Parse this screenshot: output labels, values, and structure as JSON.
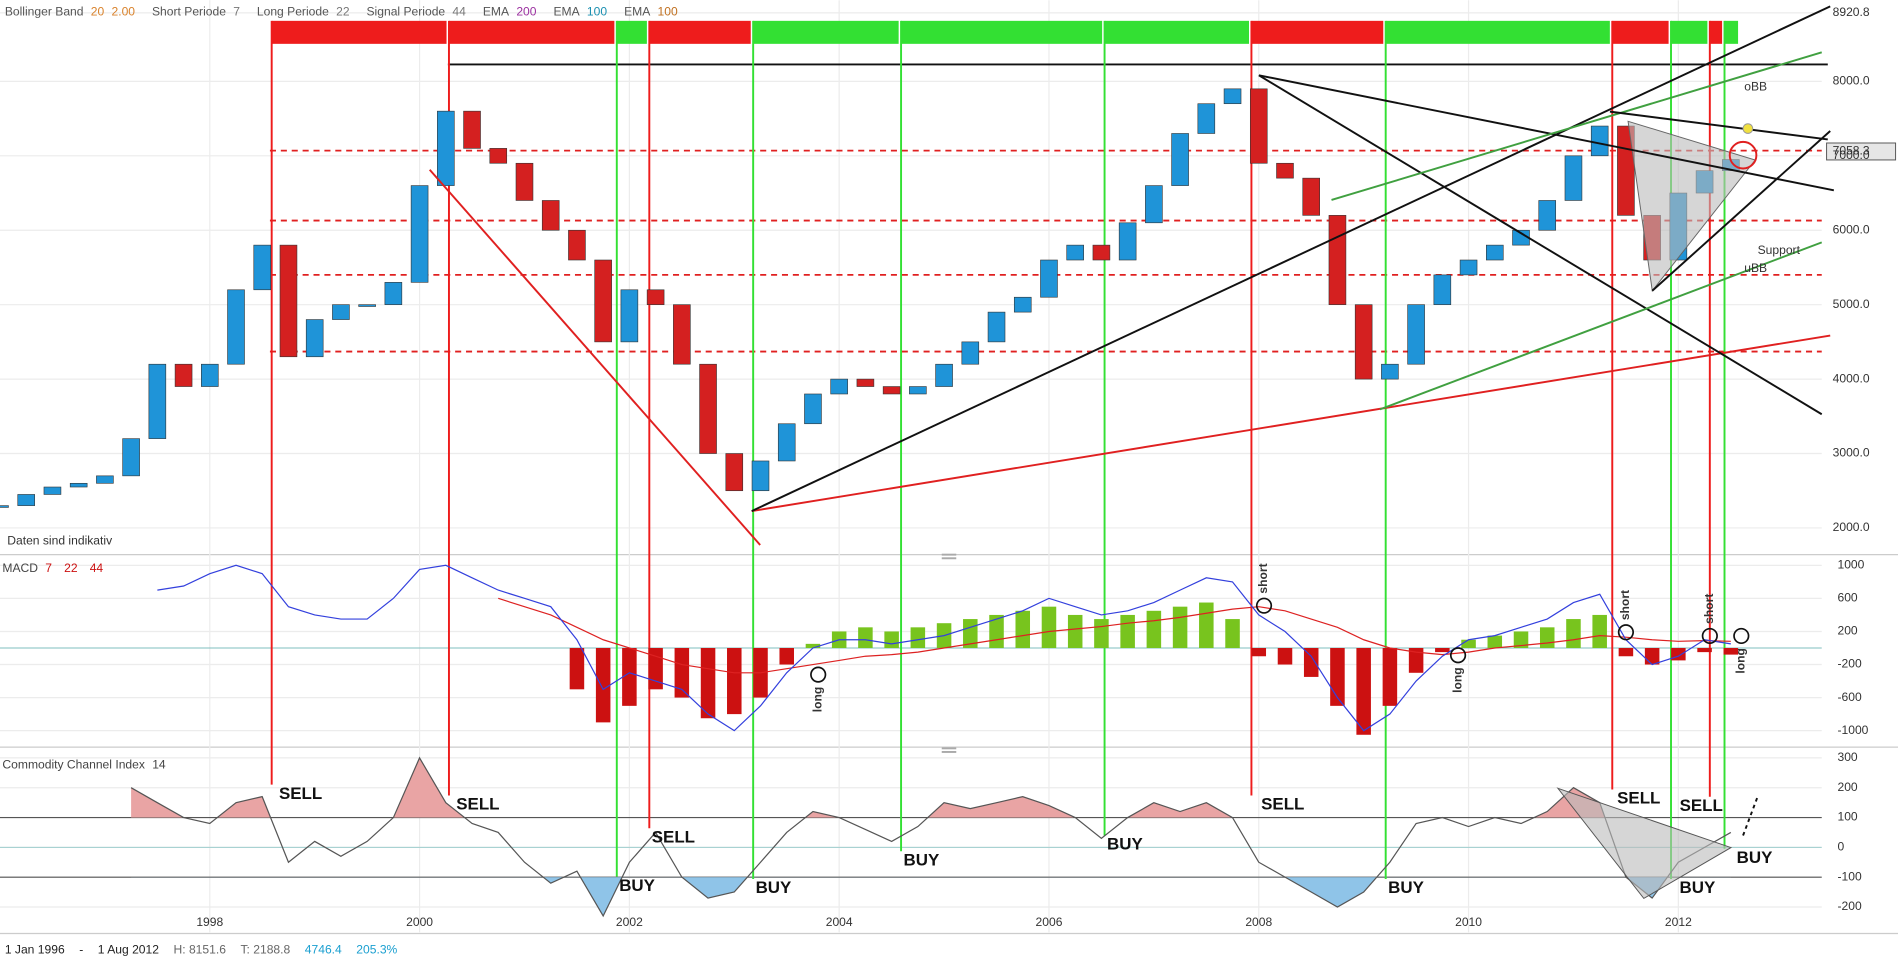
{
  "chart_data": [
    {
      "type": "candlestick",
      "legend": [
        {
          "label": "Bollinger Band",
          "params": [
            "20",
            "2.00"
          ],
          "color": "#d9822b"
        },
        {
          "label": "Short Periode",
          "params": [
            "7"
          ],
          "color": "#777777"
        },
        {
          "label": "Long Periode",
          "params": [
            "22"
          ],
          "color": "#777777"
        },
        {
          "label": "Signal Periode",
          "params": [
            "44"
          ],
          "color": "#777777"
        },
        {
          "label": "EMA",
          "params": [
            "200"
          ],
          "color": "#9b30a0"
        },
        {
          "label": "EMA",
          "params": [
            "100"
          ],
          "color": "#1a8fb0"
        },
        {
          "label": "EMA",
          "params": [
            "100"
          ],
          "color": "#c07020"
        }
      ],
      "note": "Daten sind indikativ",
      "x": [
        1996.0,
        1996.25,
        1996.5,
        1996.75,
        1997.0,
        1997.25,
        1997.5,
        1997.75,
        1998.0,
        1998.25,
        1998.5,
        1998.75,
        1999.0,
        1999.25,
        1999.5,
        1999.75,
        2000.0,
        2000.25,
        2000.5,
        2000.75,
        2001.0,
        2001.25,
        2001.5,
        2001.75,
        2002.0,
        2002.25,
        2002.5,
        2002.75,
        2003.0,
        2003.25,
        2003.5,
        2003.75,
        2004.0,
        2004.25,
        2004.5,
        2004.75,
        2005.0,
        2005.25,
        2005.5,
        2005.75,
        2006.0,
        2006.25,
        2006.5,
        2006.75,
        2007.0,
        2007.25,
        2007.5,
        2007.75,
        2008.0,
        2008.25,
        2008.5,
        2008.75,
        2009.0,
        2009.25,
        2009.5,
        2009.75,
        2010.0,
        2010.25,
        2010.5,
        2010.75,
        2011.0,
        2011.25,
        2011.5,
        2011.75,
        2012.0,
        2012.25,
        2012.5
      ],
      "close": [
        2300,
        2450,
        2550,
        2600,
        2700,
        3200,
        4200,
        3900,
        4200,
        5200,
        5800,
        4300,
        4800,
        5000,
        5000,
        5300,
        6600,
        7600,
        7100,
        6900,
        6400,
        6000,
        5600,
        4500,
        5200,
        5000,
        4200,
        3000,
        2500,
        2900,
        3400,
        3800,
        4000,
        3900,
        3800,
        3900,
        4200,
        4500,
        4900,
        5100,
        5600,
        5800,
        5600,
        6100,
        6600,
        7300,
        7700,
        7900,
        6900,
        6700,
        6200,
        5000,
        4000,
        4200,
        5000,
        5400,
        5600,
        5800,
        6000,
        6400,
        7000,
        7400,
        6200,
        5600,
        6500,
        6800,
        6950
      ],
      "colors": {
        "up": "#1f94d8",
        "down": "#d42020"
      },
      "xlim": [
        1996,
        2013.54
      ],
      "xticks": [
        1998,
        2000,
        2002,
        2004,
        2006,
        2008,
        2010,
        2012
      ],
      "ylim": [
        1690,
        9090
      ],
      "yticks": [
        8920.8,
        {
          "value": 8000,
          "label": "8000.0"
        },
        {
          "value": 7000,
          "label": "7000.0"
        },
        {
          "value": 6000,
          "label": "6000.0"
        },
        {
          "value": 5000,
          "label": "5000.0"
        },
        {
          "value": 4000,
          "label": "4000.0"
        },
        {
          "value": 3000,
          "label": "3000.0"
        },
        {
          "value": 2000,
          "label": "2000.0"
        }
      ],
      "grid": true,
      "levels": [
        7070,
        6130,
        5400,
        4370
      ],
      "resistance": 8228,
      "last_price": {
        "value": 7058.3,
        "label": "7058.3"
      },
      "annotations": [
        "oBB",
        "Support",
        "uBB"
      ],
      "signals": [
        {
          "label": "SELL",
          "x": 1998.59,
          "color": "#ee1c1c"
        },
        {
          "label": "SELL",
          "x": 2000.28,
          "color": "#ee1c1c"
        },
        {
          "label": "BUY",
          "x": 2001.88,
          "color": "#33e033"
        },
        {
          "label": "SELL",
          "x": 2002.19,
          "color": "#ee1c1c"
        },
        {
          "label": "BUY",
          "x": 2003.18,
          "color": "#33e033"
        },
        {
          "label": "BUY",
          "x": 2004.59,
          "color": "#33e033"
        },
        {
          "label": "BUY",
          "x": 2006.53,
          "color": "#33e033"
        },
        {
          "label": "SELL",
          "x": 2007.93,
          "color": "#ee1c1c"
        },
        {
          "label": "BUY",
          "x": 2009.21,
          "color": "#33e033"
        },
        {
          "label": "SELL",
          "x": 2011.37,
          "color": "#ee1c1c"
        },
        {
          "label": "BUY",
          "x": 2011.93,
          "color": "#33e033"
        },
        {
          "label": "SELL",
          "x": 2012.3,
          "color": "#ee1c1c"
        },
        {
          "label": "BUY",
          "x": 2012.44,
          "color": "#33e033"
        }
      ]
    },
    {
      "type": "macd",
      "title": "MACD",
      "params": [
        "7",
        "22",
        "44"
      ],
      "histogram": [
        null,
        null,
        null,
        null,
        null,
        null,
        null,
        null,
        null,
        null,
        null,
        null,
        null,
        null,
        null,
        null,
        null,
        null,
        null,
        null,
        null,
        null,
        -500,
        -900,
        -700,
        -500,
        -600,
        -850,
        -800,
        -600,
        -200,
        50,
        200,
        250,
        200,
        250,
        300,
        350,
        400,
        450,
        500,
        400,
        350,
        400,
        450,
        500,
        550,
        350,
        -100,
        -200,
        -350,
        -700,
        -1050,
        -700,
        -300,
        -50,
        100,
        150,
        200,
        250,
        350,
        400,
        -100,
        -200,
        -150,
        -50,
        -80
      ],
      "macd": [
        null,
        null,
        null,
        null,
        null,
        null,
        700,
        750,
        900,
        1000,
        900,
        500,
        400,
        350,
        350,
        600,
        950,
        1000,
        850,
        700,
        600,
        500,
        100,
        -500,
        -300,
        -400,
        -500,
        -800,
        -1000,
        -700,
        -300,
        0,
        100,
        100,
        50,
        100,
        150,
        250,
        350,
        450,
        600,
        500,
        400,
        450,
        550,
        700,
        850,
        800,
        400,
        200,
        -100,
        -600,
        -1000,
        -800,
        -400,
        -100,
        100,
        150,
        250,
        350,
        550,
        650,
        100,
        -200,
        -100,
        100,
        50
      ],
      "signal": [
        null,
        null,
        null,
        null,
        null,
        null,
        null,
        null,
        null,
        null,
        null,
        null,
        null,
        null,
        null,
        null,
        null,
        null,
        null,
        600,
        500,
        400,
        250,
        100,
        0,
        -100,
        -200,
        -250,
        -300,
        -300,
        -250,
        -200,
        -150,
        -100,
        -80,
        -50,
        0,
        50,
        100,
        150,
        200,
        230,
        260,
        300,
        330,
        370,
        420,
        470,
        500,
        450,
        350,
        250,
        100,
        0,
        -50,
        -80,
        -50,
        0,
        30,
        60,
        100,
        150,
        130,
        100,
        80,
        90,
        80
      ],
      "colors": {
        "up": "#78c41e",
        "down": "#cc1111",
        "macd": "#3340dd",
        "signal": "#dd2222",
        "params": "#cc1111"
      },
      "ylim": [
        -1170,
        1100
      ],
      "yticks": [
        1000,
        600,
        200,
        -200,
        -600,
        -1000
      ],
      "annotations": [
        {
          "label": "long",
          "x": 2003.8,
          "y": -322
        },
        {
          "label": "short",
          "x": 2008.05,
          "y": 512
        },
        {
          "label": "long",
          "x": 2009.9,
          "y": -88
        },
        {
          "label": "short",
          "x": 2011.5,
          "y": 190
        },
        {
          "label": "short",
          "x": 2012.3,
          "y": 146
        },
        {
          "label": "long",
          "x": 2012.6,
          "y": 146
        }
      ]
    },
    {
      "type": "cci",
      "title": "Commodity Channel Index",
      "params": [
        "14"
      ],
      "values": [
        null,
        null,
        null,
        null,
        null,
        200,
        150,
        100,
        80,
        150,
        170,
        -50,
        20,
        -30,
        20,
        100,
        300,
        150,
        80,
        50,
        -50,
        -120,
        -80,
        -230,
        -50,
        50,
        -100,
        -170,
        -150,
        -50,
        50,
        120,
        100,
        60,
        20,
        70,
        150,
        130,
        150,
        170,
        140,
        100,
        30,
        100,
        150,
        120,
        150,
        100,
        -50,
        -100,
        -150,
        -200,
        -150,
        -50,
        80,
        100,
        70,
        100,
        80,
        120,
        200,
        150,
        -100,
        -170,
        -50,
        0,
        50
      ],
      "colors": {
        "line": "#555555",
        "above": "#e9a4a4",
        "below": "#8fc4e8"
      },
      "ylim": [
        -285,
        324
      ],
      "yticks": [
        300,
        200,
        100,
        0,
        -100,
        -200
      ],
      "levels": [
        100,
        -100
      ]
    }
  ],
  "footer": [
    {
      "text": "1 Jan 1996",
      "color": "#222222"
    },
    {
      "text": "-",
      "color": "#222222"
    },
    {
      "text": "1 Aug 2012",
      "color": "#222222"
    },
    {
      "text": "H: 8151.6",
      "color": "#666666"
    },
    {
      "text": "T: 2188.8",
      "color": "#666666"
    },
    {
      "text": "4746.4",
      "color": "#1a9fd0"
    },
    {
      "text": "205.3%",
      "color": "#1a9fd0"
    }
  ]
}
